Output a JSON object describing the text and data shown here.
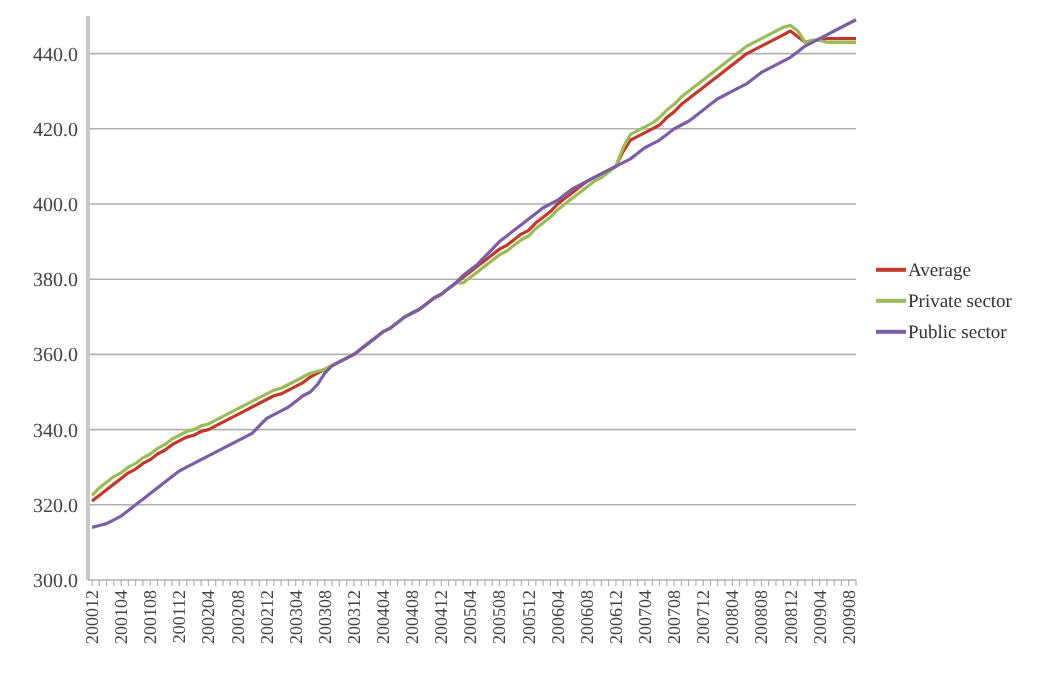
{
  "chart_data": {
    "type": "line",
    "categories": [
      "200012",
      null,
      null,
      null,
      "200104",
      null,
      null,
      null,
      "200108",
      null,
      null,
      null,
      "200112",
      null,
      null,
      null,
      "200204",
      null,
      null,
      null,
      "200208",
      null,
      null,
      null,
      "200212",
      null,
      null,
      null,
      "200304",
      null,
      null,
      null,
      "200308",
      null,
      null,
      null,
      "200312",
      null,
      null,
      null,
      "200404",
      null,
      null,
      null,
      "200408",
      null,
      null,
      null,
      "200412",
      null,
      null,
      null,
      "200504",
      null,
      null,
      null,
      "200508",
      null,
      null,
      null,
      "200512",
      null,
      null,
      null,
      "200604",
      null,
      null,
      null,
      "200608",
      null,
      null,
      null,
      "200612",
      null,
      null,
      null,
      "200704",
      null,
      null,
      null,
      "200708",
      null,
      null,
      null,
      "200712",
      null,
      null,
      null,
      "200804",
      null,
      null,
      null,
      "200808",
      null,
      null,
      null,
      "200812",
      null,
      null,
      null,
      "200904",
      null,
      null,
      null,
      "200908",
      null
    ],
    "series": [
      {
        "name": "Average",
        "color": "#c0392b",
        "values": [
          321,
          322.5,
          324,
          325.5,
          327,
          328.5,
          329.5,
          331,
          332,
          333.5,
          334.5,
          336,
          337,
          338,
          338.5,
          339.5,
          340,
          341,
          342,
          343,
          344,
          345,
          346,
          347,
          348,
          349,
          349.5,
          350.5,
          351.5,
          352.5,
          354,
          355,
          356,
          357,
          358,
          359,
          360,
          361.5,
          363,
          364.5,
          366,
          367,
          368.5,
          370,
          371,
          372,
          373.5,
          375,
          376,
          377.5,
          379,
          380.5,
          382,
          383.5,
          385,
          386.5,
          388,
          389,
          390.5,
          392,
          393,
          395,
          396.5,
          398,
          400,
          401.5,
          403,
          404.5,
          406,
          407,
          408,
          409,
          410,
          414,
          417,
          418,
          419,
          420,
          421,
          423,
          424.5,
          426.5,
          428,
          429.5,
          431,
          432.5,
          434,
          435.5,
          437,
          438.5,
          440,
          441,
          442,
          443,
          444,
          445,
          446,
          444.5,
          443,
          443.5,
          443.5,
          444,
          444,
          444,
          444,
          444
        ]
      },
      {
        "name": "Private sector",
        "color": "#9bbb59",
        "values": [
          322.5,
          324.5,
          326,
          327.5,
          328.5,
          330,
          331,
          332.5,
          333.5,
          335,
          336,
          337.5,
          338.5,
          339.5,
          340,
          341,
          341.5,
          342.5,
          343.5,
          344.5,
          345.5,
          346.5,
          347.5,
          348.5,
          349.5,
          350.5,
          351,
          352,
          353,
          354,
          355,
          355.5,
          356,
          357,
          358,
          359,
          360,
          361.5,
          363,
          364.5,
          366,
          367,
          368.5,
          370,
          371,
          372,
          373.5,
          375,
          376,
          377.5,
          379,
          379,
          380.5,
          382,
          383.5,
          385,
          386.5,
          387.5,
          389,
          390.5,
          391.5,
          393.5,
          395,
          396.5,
          398.5,
          400,
          401.5,
          403,
          404.5,
          406,
          407,
          408.5,
          410,
          415,
          418.5,
          419.5,
          420.5,
          421.5,
          423,
          425,
          426.5,
          428.5,
          430,
          431.5,
          433,
          434.5,
          436,
          437.5,
          439,
          440.5,
          442,
          443,
          444,
          445,
          446,
          447,
          447.5,
          446,
          443,
          443.5,
          443.5,
          443,
          443,
          443,
          443,
          443
        ]
      },
      {
        "name": "Public sector",
        "color": "#7b5ea7",
        "values": [
          314,
          314.5,
          315,
          316,
          317,
          318.5,
          320,
          321.5,
          323,
          324.5,
          326,
          327.5,
          329,
          330,
          331,
          332,
          333,
          334,
          335,
          336,
          337,
          338,
          339,
          341,
          343,
          344,
          345,
          346,
          347.5,
          349,
          350,
          352,
          355,
          357,
          358,
          359,
          360,
          361.5,
          363,
          364.5,
          366,
          367,
          368.5,
          370,
          371,
          372,
          373.5,
          375,
          376,
          377.5,
          379,
          381,
          382.5,
          384,
          386,
          388,
          390,
          391.5,
          393,
          394.5,
          396,
          397.5,
          399,
          400,
          401,
          402.5,
          404,
          405,
          406,
          407,
          408,
          409,
          410,
          411,
          412,
          413.5,
          415,
          416,
          417,
          418.5,
          420,
          421,
          422,
          423.5,
          425,
          426.5,
          428,
          429,
          430,
          431,
          432,
          433.5,
          435,
          436,
          437,
          438,
          439,
          440.5,
          442,
          443,
          444,
          445,
          446,
          447,
          448,
          449
        ]
      }
    ],
    "ylim": [
      300,
      450
    ],
    "yticks": [
      {
        "value": 300,
        "label": "300.0"
      },
      {
        "value": 320,
        "label": "320.0"
      },
      {
        "value": 340,
        "label": "340.0"
      },
      {
        "value": 360,
        "label": "360.0"
      },
      {
        "value": 380,
        "label": "380.0"
      },
      {
        "value": 400,
        "label": "400.0"
      },
      {
        "value": 420,
        "label": "420.0"
      },
      {
        "value": 440,
        "label": "440.0"
      }
    ],
    "grid": "y",
    "legend": "right"
  }
}
